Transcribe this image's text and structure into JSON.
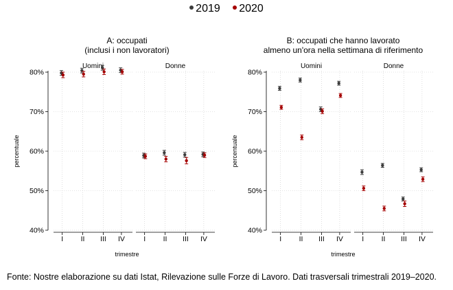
{
  "legend": {
    "items": [
      {
        "label": "2019",
        "color": "#3b3b3b"
      },
      {
        "label": "2020",
        "color": "#a50000"
      }
    ]
  },
  "footnote": "Fonte: Nostre elaborazione su dati Istat, Rilevazione sulle Forze di Lavoro. Dati trasversali trimestrali 2019–2020.",
  "chart_data": [
    {
      "type": "scatter",
      "title": "A: occupati",
      "subtitle": "(inclusi i non lavoratori)",
      "ylabel": "percentuale",
      "xlabel": "trimestre",
      "ylim": [
        40,
        80
      ],
      "yticks": [
        "40%",
        "50%",
        "60%",
        "70%",
        "80%"
      ],
      "grid": true,
      "legend_position": "top",
      "categories": [
        "I",
        "II",
        "III",
        "IV"
      ],
      "panels": [
        {
          "label": "Uomini",
          "series": [
            {
              "name": "2019",
              "values": [
                79.8,
                80.4,
                81.1,
                80.5
              ],
              "ci": [
                0.6,
                0.6,
                0.6,
                0.6
              ]
            },
            {
              "name": "2020",
              "values": [
                79.3,
                79.5,
                80.1,
                80.1
              ],
              "ci": [
                0.7,
                0.7,
                0.7,
                0.6
              ]
            }
          ]
        },
        {
          "label": "Donne",
          "series": [
            {
              "name": "2019",
              "values": [
                58.9,
                59.6,
                59.1,
                59.2
              ],
              "ci": [
                0.6,
                0.6,
                0.6,
                0.6
              ]
            },
            {
              "name": "2020",
              "values": [
                58.7,
                58.0,
                57.6,
                59.0
              ],
              "ci": [
                0.6,
                0.7,
                0.8,
                0.6
              ]
            }
          ]
        }
      ]
    },
    {
      "type": "scatter",
      "title": "B: occupati che hanno lavorato",
      "subtitle": "almeno un'ora nella settimana di riferimento",
      "ylabel": "percentuale",
      "xlabel": "trimestre",
      "ylim": [
        40,
        80
      ],
      "yticks": [
        "40%",
        "50%",
        "60%",
        "70%",
        "80%"
      ],
      "grid": true,
      "legend_position": "top",
      "categories": [
        "I",
        "II",
        "III",
        "IV"
      ],
      "panels": [
        {
          "label": "Uomini",
          "series": [
            {
              "name": "2019",
              "values": [
                75.9,
                78.0,
                70.6,
                77.2
              ],
              "ci": [
                0.5,
                0.5,
                0.6,
                0.5
              ]
            },
            {
              "name": "2020",
              "values": [
                71.1,
                63.5,
                70.1,
                74.1
              ],
              "ci": [
                0.5,
                0.6,
                0.6,
                0.5
              ]
            }
          ]
        },
        {
          "label": "Donne",
          "series": [
            {
              "name": "2019",
              "values": [
                54.7,
                56.4,
                47.9,
                55.3
              ],
              "ci": [
                0.6,
                0.5,
                0.5,
                0.5
              ]
            },
            {
              "name": "2020",
              "values": [
                50.6,
                45.5,
                46.7,
                52.9
              ],
              "ci": [
                0.6,
                0.6,
                0.7,
                0.6
              ]
            }
          ]
        }
      ]
    }
  ]
}
